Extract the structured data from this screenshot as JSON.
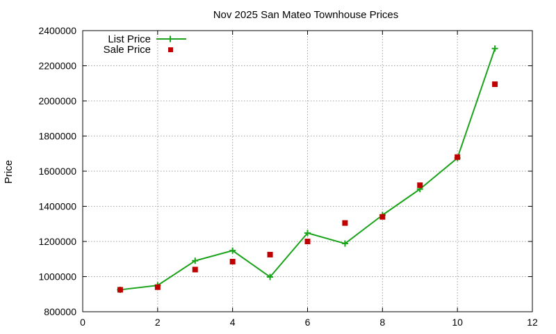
{
  "chart_data": {
    "type": "line",
    "title": "Nov 2025 San Mateo Townhouse Prices",
    "xlabel": "",
    "ylabel": "Price",
    "xlim": [
      0,
      12
    ],
    "ylim": [
      800000,
      2400000
    ],
    "xticks": [
      0,
      2,
      4,
      6,
      8,
      10,
      12
    ],
    "yticks": [
      800000,
      1000000,
      1200000,
      1400000,
      1600000,
      1800000,
      2000000,
      2200000,
      2400000
    ],
    "grid": true,
    "legend_position": "top-left",
    "series": [
      {
        "name": "List Price",
        "style": "line-with-plus-markers",
        "color": "#1aa31a",
        "x": [
          1,
          2,
          3,
          4,
          5,
          6,
          7,
          8,
          9,
          10,
          11
        ],
        "values": [
          925000,
          950000,
          1090000,
          1148000,
          998000,
          1248000,
          1188000,
          1350000,
          1498000,
          1675000,
          2298000
        ]
      },
      {
        "name": "Sale Price",
        "style": "square-markers",
        "color": "#c00000",
        "x": [
          1,
          2,
          3,
          4,
          5,
          6,
          7,
          8,
          9,
          10,
          11
        ],
        "values": [
          925000,
          940000,
          1040000,
          1085000,
          1125000,
          1200000,
          1305000,
          1340000,
          1520000,
          1680000,
          2095000
        ]
      }
    ]
  }
}
